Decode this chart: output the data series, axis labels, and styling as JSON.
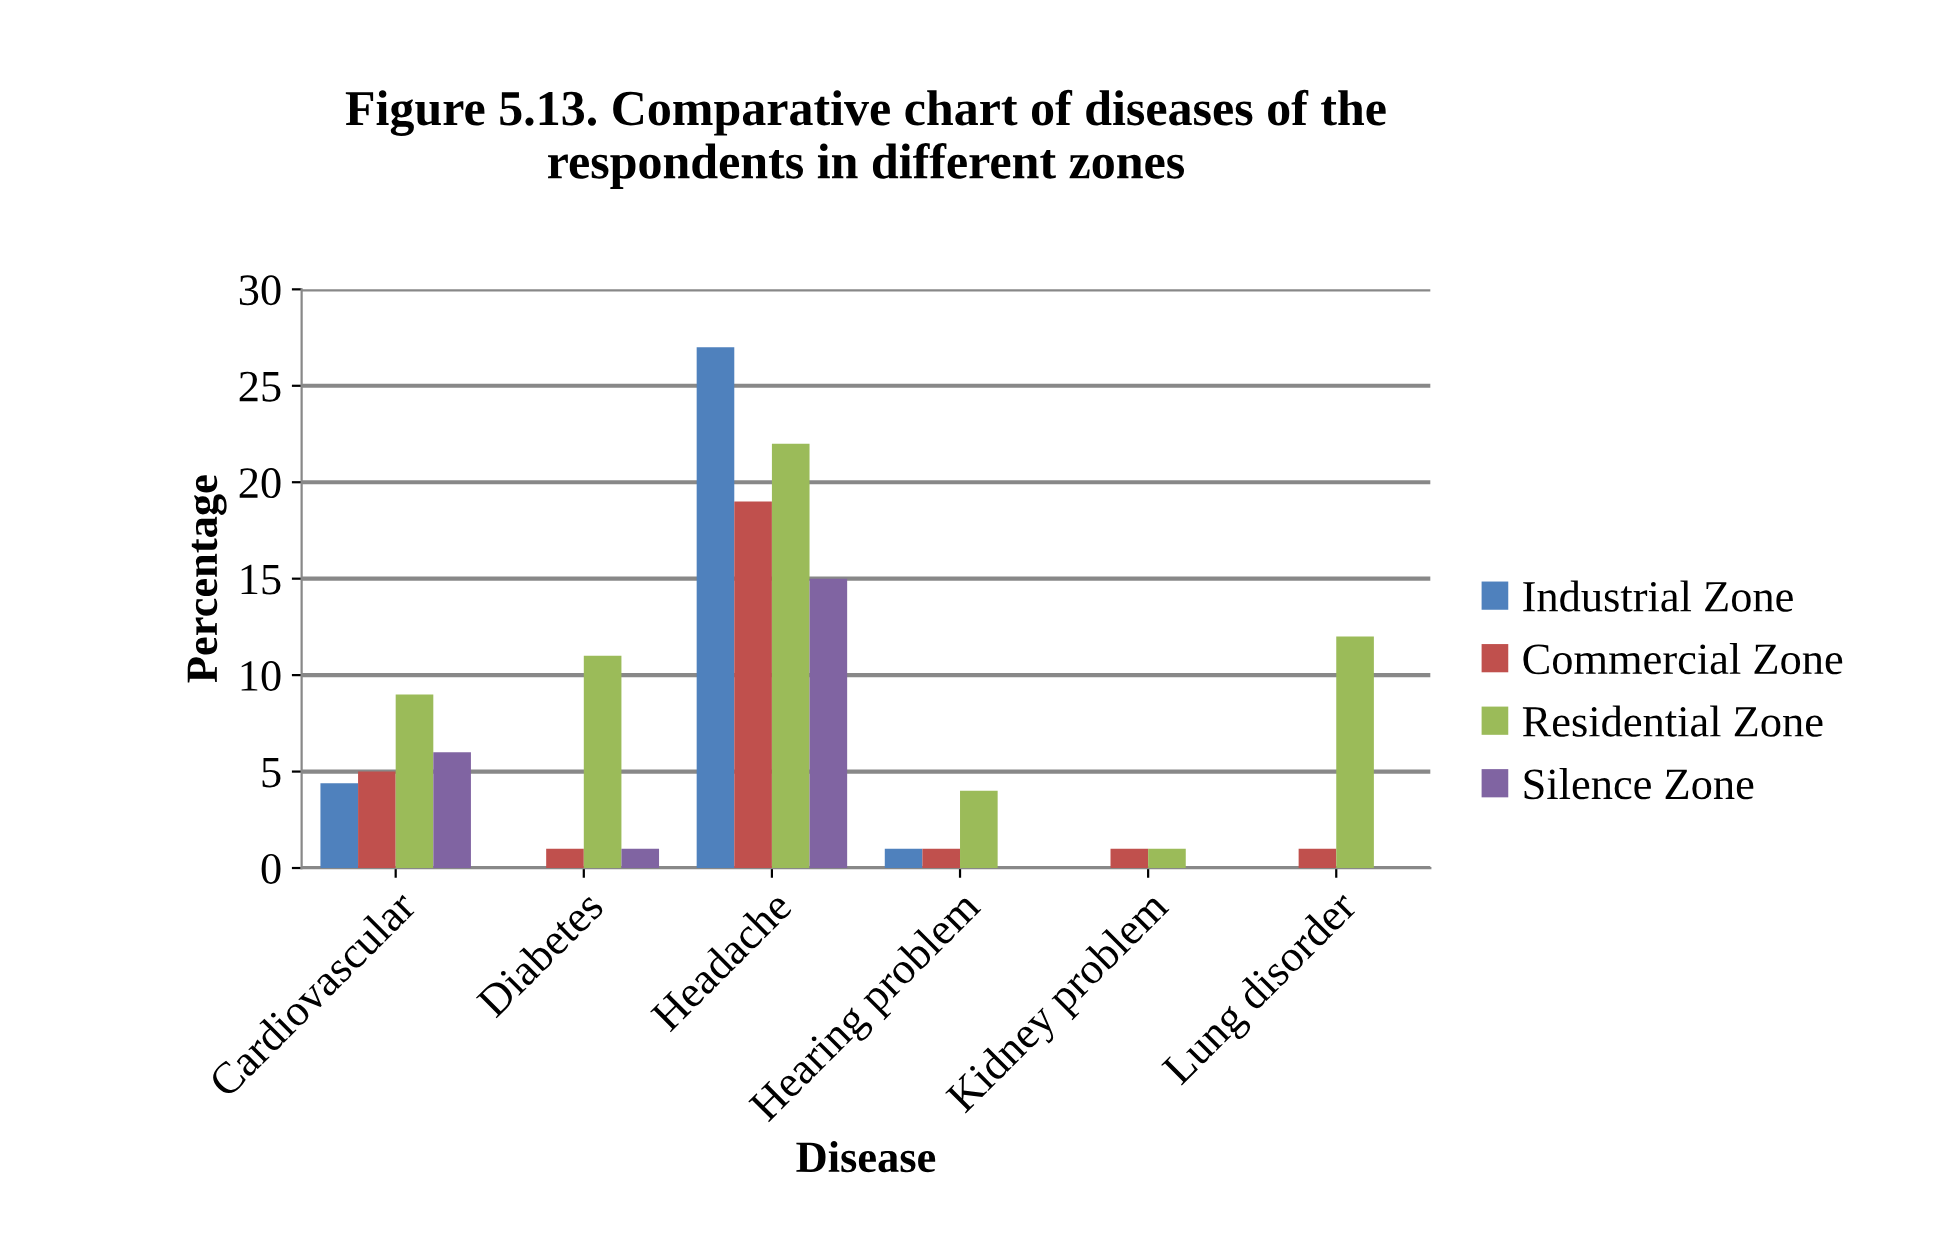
{
  "chart_data": {
    "type": "bar",
    "title": "Figure 5.13. Comparative chart of diseases of the\nrespondents in different zones",
    "xlabel": "Disease",
    "ylabel": "Percentage",
    "categories": [
      "Cardiovascular",
      "Diabetes",
      "Headache",
      "Hearing problem",
      "Kidney problem",
      "Lung disorder"
    ],
    "series": [
      {
        "name": "Industrial Zone",
        "color": "#4f81bd",
        "values": [
          4.4,
          0,
          27,
          1,
          null,
          0
        ]
      },
      {
        "name": "Commercial Zone",
        "color": "#c0504d",
        "values": [
          5,
          1,
          19,
          1,
          1,
          1
        ]
      },
      {
        "name": "Residential Zone",
        "color": "#9bbb59",
        "values": [
          9,
          11,
          22,
          4,
          1,
          12
        ]
      },
      {
        "name": "Silence Zone",
        "color": "#8064a2",
        "values": [
          6,
          1,
          15,
          0,
          0,
          0
        ]
      }
    ],
    "ylim": [
      0,
      30
    ],
    "yticks": [
      0,
      5,
      10,
      15,
      20,
      25,
      30
    ],
    "grid": "y",
    "legend": "right"
  }
}
